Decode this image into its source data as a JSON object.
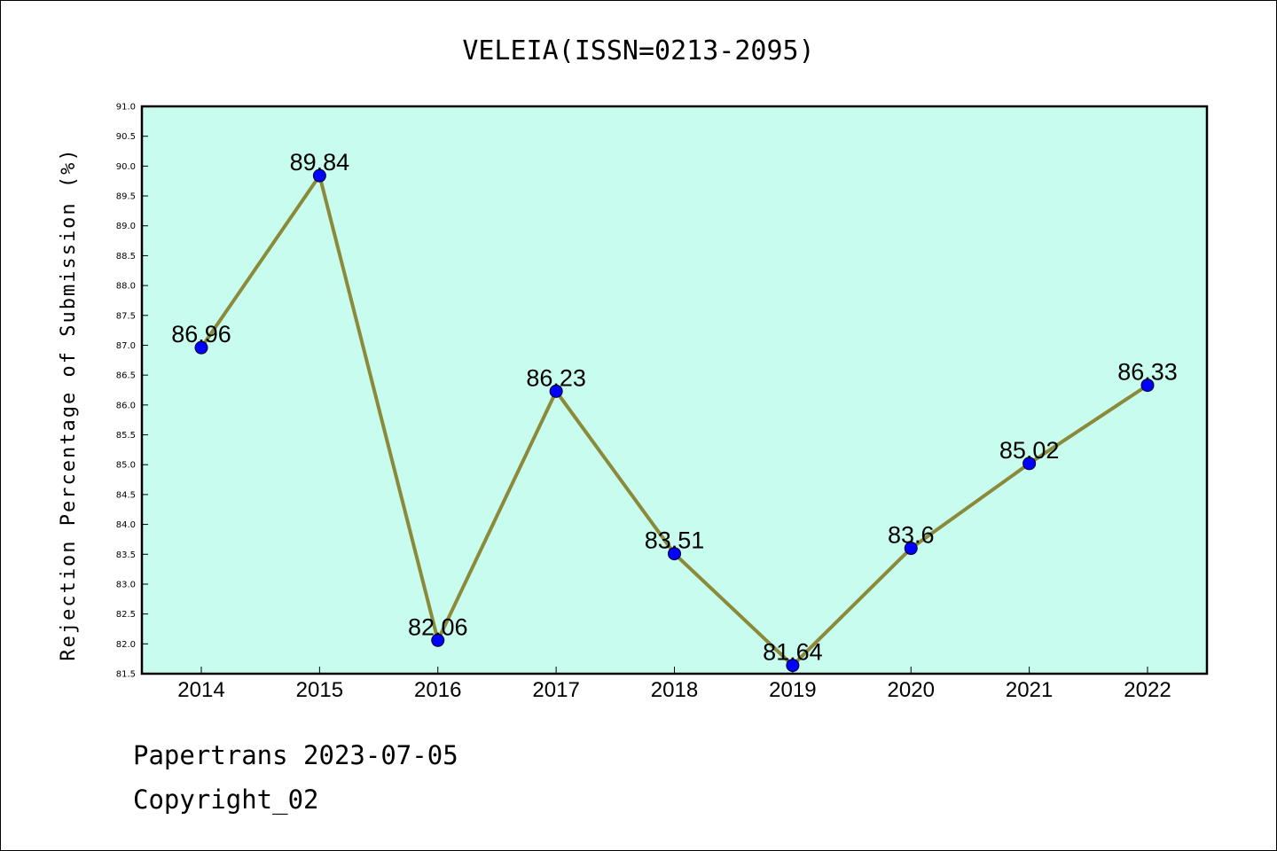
{
  "chart_data": {
    "type": "line",
    "title": "VELEIA(ISSN=0213-2095)",
    "xlabel": "",
    "ylabel": "Rejection Percentage of Submission (%)",
    "categories": [
      "2014",
      "2015",
      "2016",
      "2017",
      "2018",
      "2019",
      "2020",
      "2021",
      "2022"
    ],
    "series": [
      {
        "values": [
          86.96,
          89.84,
          82.06,
          86.23,
          83.51,
          81.64,
          83.6,
          85.02,
          86.33
        ]
      }
    ],
    "data_labels": [
      "86.96",
      "89.84",
      "82.06",
      "86.23",
      "83.51",
      "81.64",
      "83.6",
      "85.02",
      "86.33"
    ],
    "ylim": [
      81.5,
      91.0
    ],
    "yticks": [
      "81.5",
      "82.0",
      "82.5",
      "83.0",
      "83.5",
      "84.0",
      "84.5",
      "85.0",
      "85.5",
      "86.0",
      "86.5",
      "87.0",
      "87.5",
      "88.0",
      "88.5",
      "89.0",
      "89.5",
      "90.0",
      "90.5",
      "91.0"
    ],
    "grid": false,
    "legend": "none",
    "colors": {
      "plot_background": "#c8fcee",
      "line": "#8b8a3a",
      "marker": "#0000ff"
    }
  },
  "footer": {
    "line1": "Papertrans 2023-07-05",
    "line2": "Copyright_02"
  }
}
